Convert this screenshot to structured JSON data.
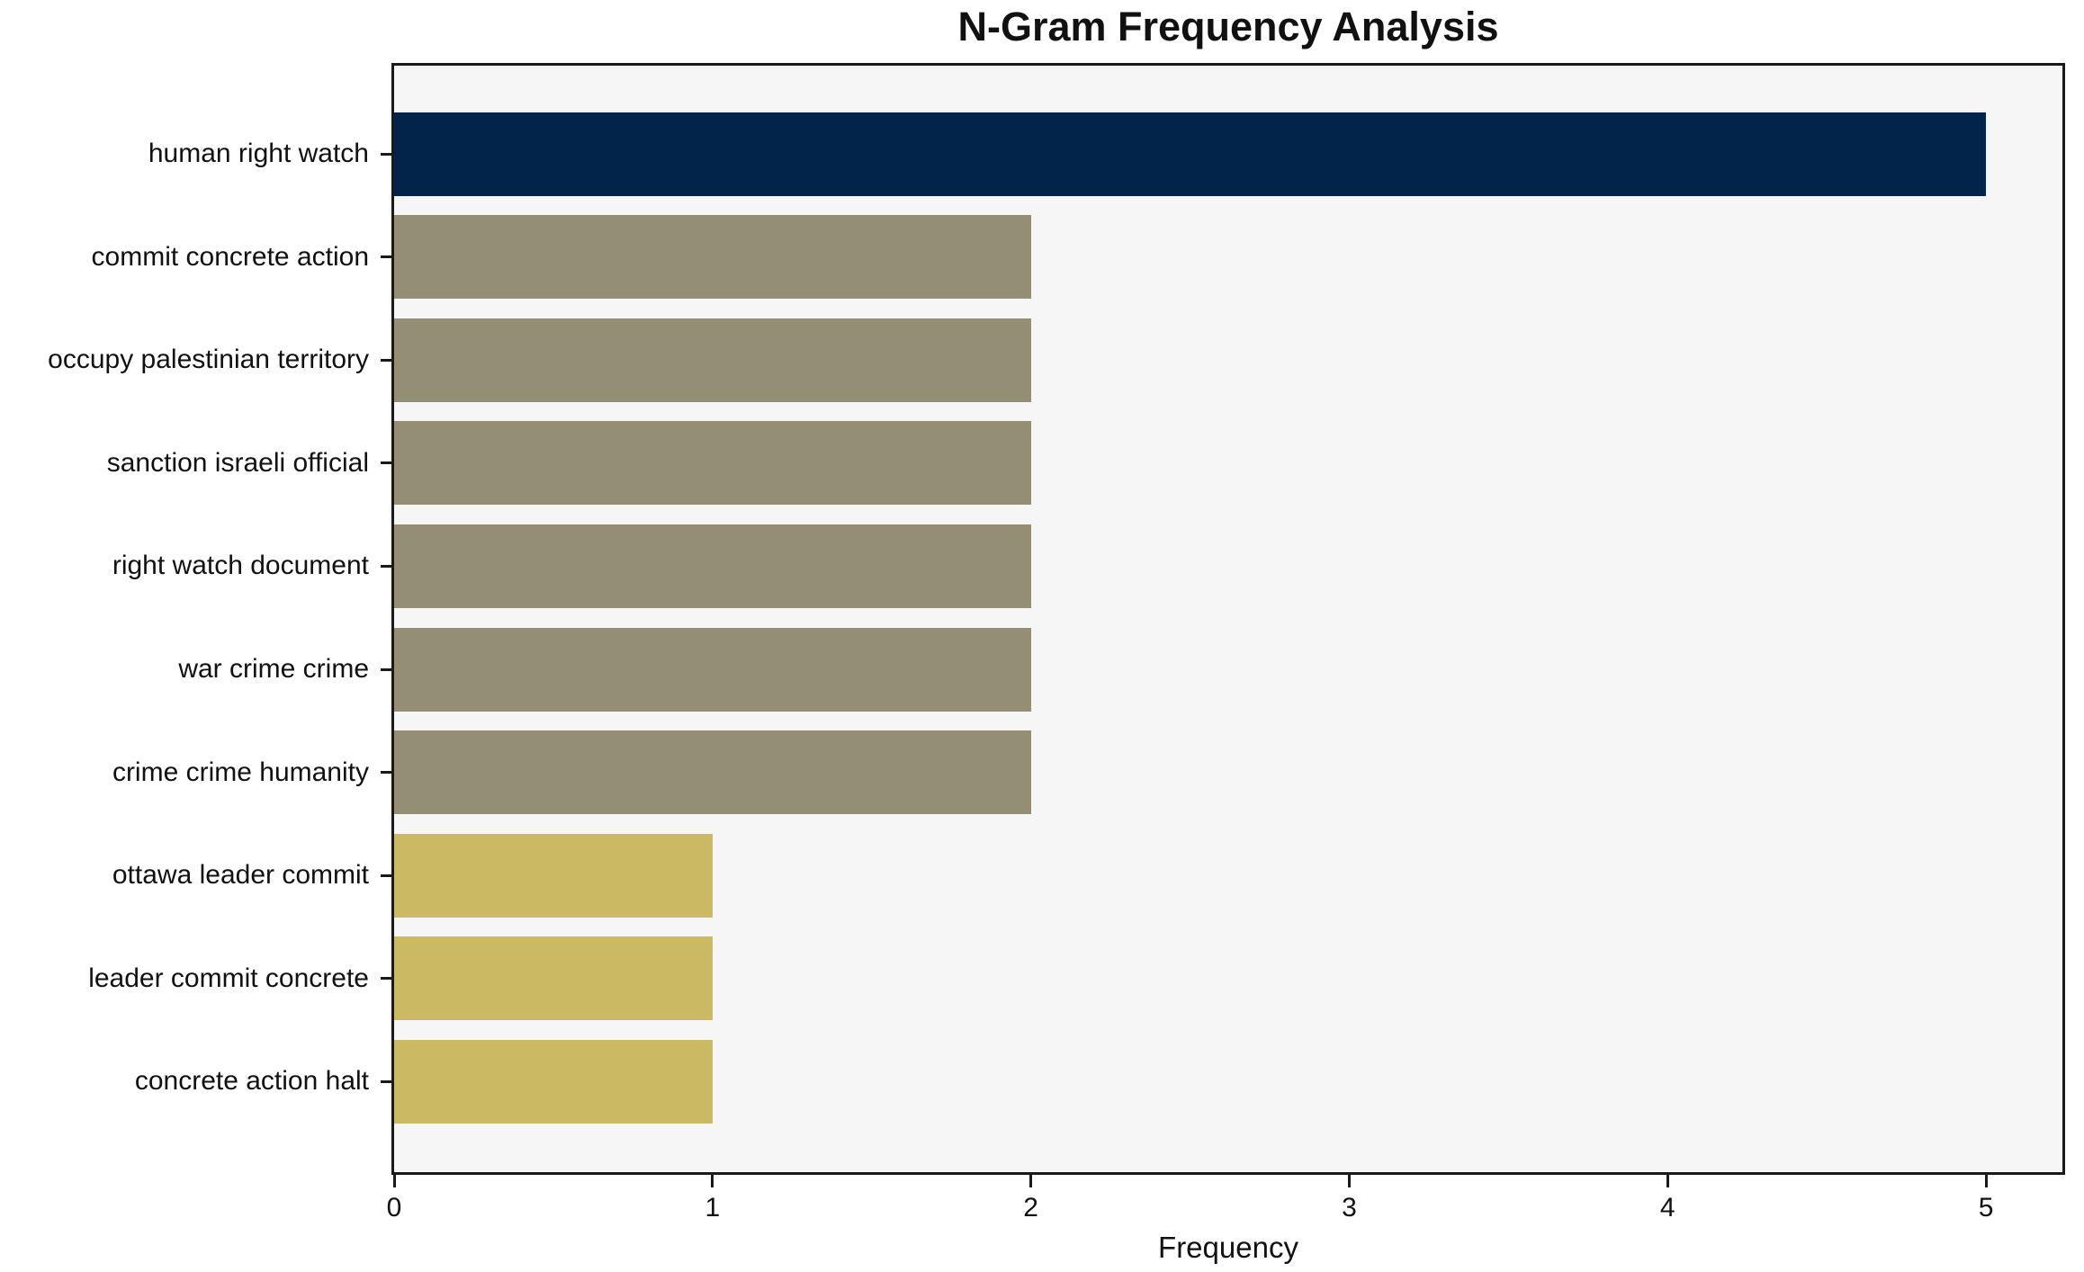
{
  "chart_data": {
    "type": "bar",
    "orientation": "horizontal",
    "title": "N-Gram Frequency Analysis",
    "xlabel": "Frequency",
    "ylabel": "",
    "categories": [
      "human right watch",
      "commit concrete action",
      "occupy palestinian territory",
      "sanction israeli official",
      "right watch document",
      "war crime crime",
      "crime crime humanity",
      "ottawa leader commit",
      "leader commit concrete",
      "concrete action halt"
    ],
    "values": [
      5,
      2,
      2,
      2,
      2,
      2,
      2,
      1,
      1,
      1
    ],
    "bar_colors": [
      "#02234a",
      "#948e75",
      "#948e75",
      "#948e75",
      "#948e75",
      "#948e75",
      "#948e75",
      "#ccb963",
      "#ccb963",
      "#ccb963"
    ],
    "x_ticks": [
      "0",
      "1",
      "2",
      "3",
      "4",
      "5"
    ],
    "xlim": [
      0,
      5.24
    ],
    "grid": false,
    "legend": null,
    "plot_background": "#f6f6f7",
    "axis_color": "#1a1a1a"
  }
}
